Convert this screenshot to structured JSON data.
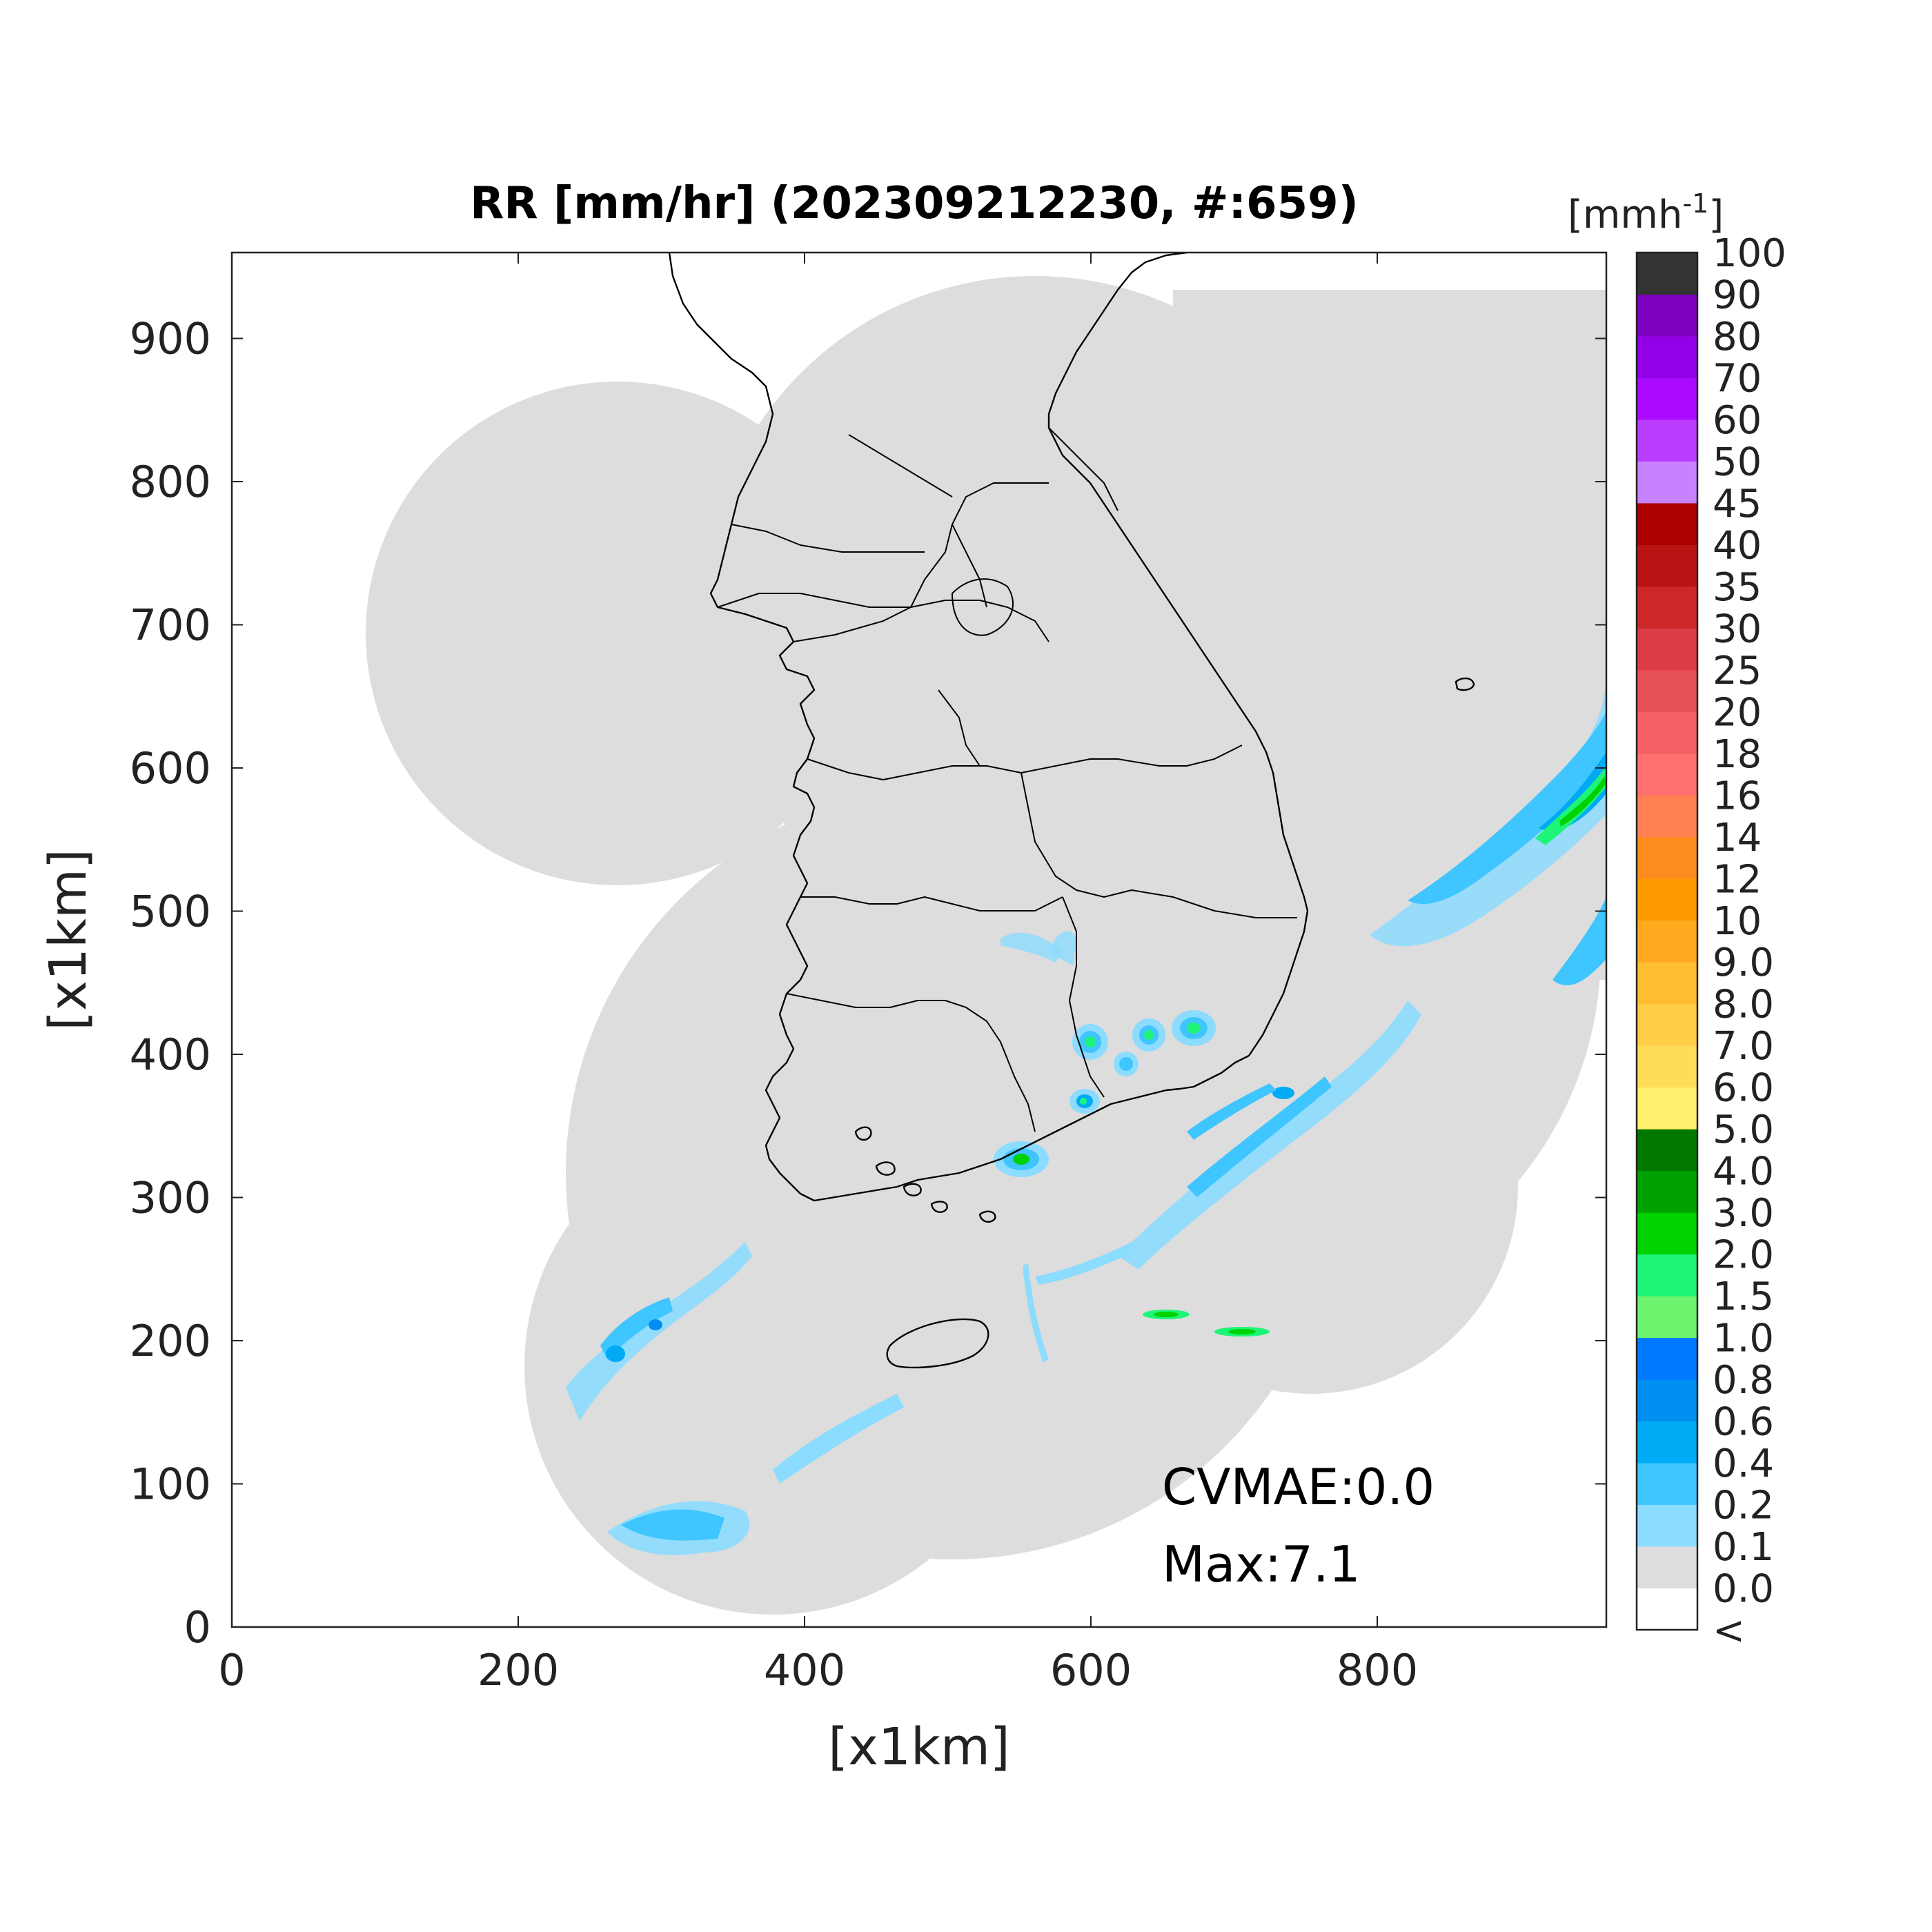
{
  "figure": {
    "title": "RR [mm/hr] (202309212230, #:659)",
    "xlabel": "[x1km]",
    "ylabel": "[x1km]",
    "x_ticks": [
      "0",
      "200",
      "400",
      "600",
      "800"
    ],
    "y_ticks": [
      "0",
      "100",
      "200",
      "300",
      "400",
      "500",
      "600",
      "700",
      "800",
      "900"
    ],
    "xlim": [
      0,
      960
    ],
    "ylim": [
      0,
      960
    ],
    "annotations": {
      "cvmae": "CVMAE:0.0",
      "max": "Max:7.1"
    },
    "background_color": "#dddddd",
    "outside_color": "#ffffff"
  },
  "colorbar": {
    "unit_main": "[mmh",
    "unit_exp": "-1",
    "unit_close": "]",
    "under_label": "<",
    "levels": [
      {
        "label": "0.0",
        "color": "#dddddd"
      },
      {
        "label": "0.1",
        "color": "#8cdcff"
      },
      {
        "label": "0.2",
        "color": "#3fc5ff"
      },
      {
        "label": "0.4",
        "color": "#00aaf5"
      },
      {
        "label": "0.6",
        "color": "#008ff0"
      },
      {
        "label": "0.8",
        "color": "#0078ff"
      },
      {
        "label": "1.0",
        "color": "#6ef36e"
      },
      {
        "label": "1.5",
        "color": "#1ef578"
      },
      {
        "label": "2.0",
        "color": "#00d200"
      },
      {
        "label": "3.0",
        "color": "#00a000"
      },
      {
        "label": "4.0",
        "color": "#007800"
      },
      {
        "label": "5.0",
        "color": "#ffef6e"
      },
      {
        "label": "6.0",
        "color": "#ffdc5a"
      },
      {
        "label": "7.0",
        "color": "#ffce46"
      },
      {
        "label": "8.0",
        "color": "#ffbe32"
      },
      {
        "label": "9.0",
        "color": "#ffaa1e"
      },
      {
        "label": "10",
        "color": "#ff9b00"
      },
      {
        "label": "12",
        "color": "#ff8c1e"
      },
      {
        "label": "14",
        "color": "#ff8050"
      },
      {
        "label": "16",
        "color": "#ff7070"
      },
      {
        "label": "18",
        "color": "#f55f64"
      },
      {
        "label": "20",
        "color": "#e85058"
      },
      {
        "label": "25",
        "color": "#dc3c46"
      },
      {
        "label": "30",
        "color": "#cd2828"
      },
      {
        "label": "35",
        "color": "#b91414"
      },
      {
        "label": "40",
        "color": "#aa0000"
      },
      {
        "label": "45",
        "color": "#c882ff"
      },
      {
        "label": "50",
        "color": "#b93cff"
      },
      {
        "label": "60",
        "color": "#aa0aff"
      },
      {
        "label": "70",
        "color": "#9100e6"
      },
      {
        "label": "80",
        "color": "#7d00be"
      },
      {
        "label": "90",
        "color": "#333333"
      },
      {
        "label": "100",
        "color": "#333333"
      }
    ]
  }
}
